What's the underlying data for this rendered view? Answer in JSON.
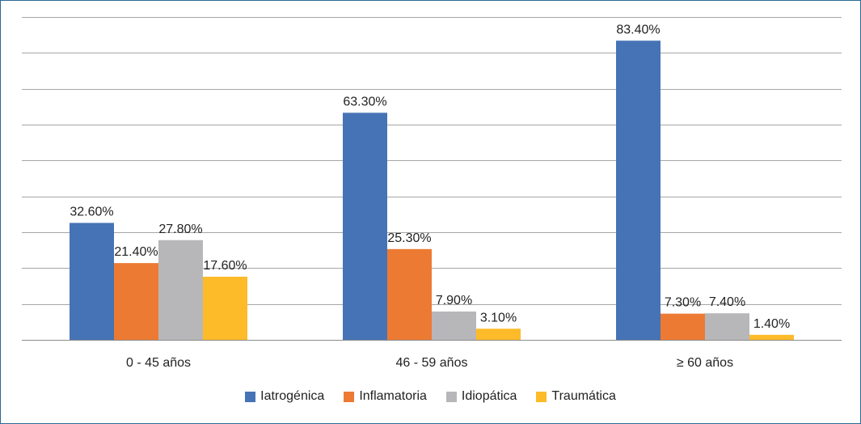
{
  "chart_data": {
    "type": "bar",
    "title": "",
    "xlabel": "",
    "ylabel": "",
    "ylim": [
      0,
      90
    ],
    "ytick_step": 10,
    "grid": true,
    "legend_position": "bottom",
    "categories": [
      "0 - 45 años",
      "46 - 59 años",
      "≥ 60 años"
    ],
    "series": [
      {
        "name": "Iatrogénica",
        "color": "#4673b5",
        "values": [
          32.6,
          63.3,
          83.4
        ],
        "labels": [
          "32.60%",
          "63.30%",
          "83.40%"
        ]
      },
      {
        "name": "Inflamatoria",
        "color": "#ed7a33",
        "values": [
          21.4,
          25.3,
          7.3
        ],
        "labels": [
          "21.40%",
          "25.30%",
          "7.30%"
        ]
      },
      {
        "name": "Idiopática",
        "color": "#b7b7b9",
        "values": [
          27.8,
          7.9,
          7.4
        ],
        "labels": [
          "27.80%",
          "7.90%",
          "7.40%"
        ]
      },
      {
        "name": "Traumática",
        "color": "#fdbb2a",
        "values": [
          17.6,
          3.1,
          1.4
        ],
        "labels": [
          "17.60%",
          "3.10%",
          "1.40%"
        ]
      }
    ]
  }
}
